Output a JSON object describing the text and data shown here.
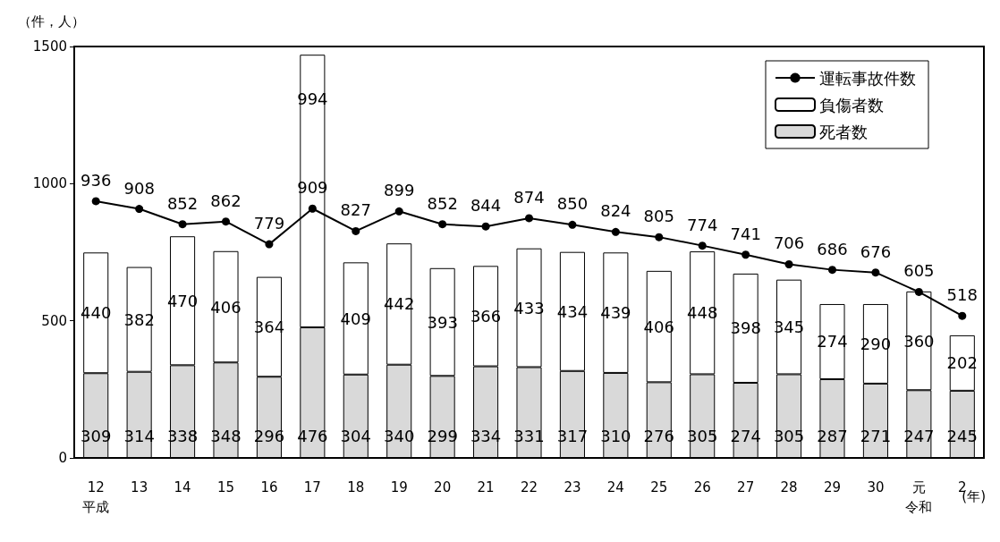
{
  "chart_data": {
    "type": "bar",
    "ylabel": "（件，人）",
    "xlabel": "(年)",
    "categories": [
      "12\n平成",
      "13",
      "14",
      "15",
      "16",
      "17",
      "18",
      "19",
      "20",
      "21",
      "22",
      "23",
      "24",
      "25",
      "26",
      "27",
      "28",
      "29",
      "30",
      "元令和",
      "2"
    ],
    "series": [
      {
        "name": "死者数",
        "color": "#d9d9d9",
        "values": [
          309,
          314,
          338,
          348,
          296,
          476,
          304,
          340,
          299,
          334,
          331,
          317,
          310,
          276,
          305,
          274,
          305,
          287,
          271,
          247,
          245
        ]
      },
      {
        "name": "負傷者数",
        "color": "#ffffff",
        "values": [
          440,
          382,
          470,
          406,
          364,
          994,
          409,
          442,
          393,
          366,
          433,
          434,
          439,
          406,
          448,
          398,
          345,
          274,
          290,
          360,
          202
        ]
      },
      {
        "name": "運転事故件数",
        "type": "line",
        "color": "#000000",
        "values": [
          936,
          908,
          852,
          862,
          779,
          909,
          827,
          899,
          852,
          844,
          874,
          850,
          824,
          805,
          774,
          741,
          706,
          686,
          676,
          605,
          518
        ]
      }
    ],
    "stacked": true,
    "ylim": [
      0,
      1500
    ],
    "yticks": [
      0,
      500,
      1000,
      1500
    ],
    "grid": false,
    "legend": "top right",
    "data_labels": true,
    "marker": "circle",
    "line_style": "solid"
  }
}
